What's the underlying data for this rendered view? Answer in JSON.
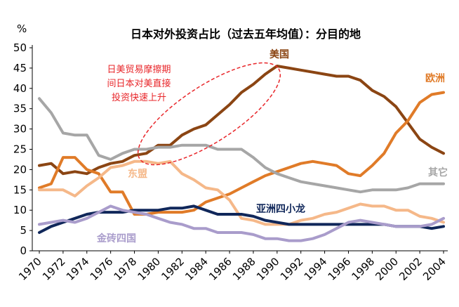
{
  "chart_data": {
    "type": "line",
    "title": "日本对外投资占比（过去五年均值）：分目的地",
    "ylabel": "%",
    "ylim": [
      0,
      50
    ],
    "yticks": [
      0,
      5,
      10,
      15,
      20,
      25,
      30,
      35,
      40,
      45,
      50
    ],
    "xlim": [
      1970,
      2004
    ],
    "xticks": [
      "1970",
      "1972",
      "1974",
      "1976",
      "1978",
      "1980",
      "1982",
      "1984",
      "1986",
      "1988",
      "1990",
      "1992",
      "1994",
      "1996",
      "1998",
      "2000",
      "2002",
      "2004"
    ],
    "grid": false,
    "x": [
      1970,
      1971,
      1972,
      1973,
      1974,
      1975,
      1976,
      1977,
      1978,
      1979,
      1980,
      1981,
      1982,
      1983,
      1984,
      1985,
      1986,
      1987,
      1988,
      1989,
      1990,
      1991,
      1992,
      1993,
      1994,
      1995,
      1996,
      1997,
      1998,
      1999,
      2000,
      2001,
      2002,
      2003,
      2004
    ],
    "series": [
      {
        "name": "美国",
        "color": "#8b4513",
        "values": [
          21,
          21.5,
          19,
          19.5,
          19,
          20.5,
          21.5,
          22,
          23.5,
          24,
          26,
          26,
          28.5,
          30,
          31,
          33.5,
          36,
          39,
          41,
          43.5,
          45.5,
          45,
          44.5,
          44,
          43.5,
          43,
          43,
          42,
          39.5,
          38,
          35.5,
          31.5,
          27.5,
          25.5,
          24
        ]
      },
      {
        "name": "欧洲",
        "color": "#e07b28",
        "values": [
          15.5,
          16.5,
          23,
          23,
          20,
          19,
          14.5,
          14.5,
          9,
          9,
          9.5,
          9.5,
          9.5,
          10,
          12,
          13,
          14,
          15.5,
          17,
          18.5,
          19.5,
          20.5,
          21.5,
          22,
          21.5,
          21,
          19,
          18.5,
          21,
          24,
          29,
          32,
          36.5,
          38.5,
          39
        ]
      },
      {
        "name": "东盟",
        "color": "#f5b889",
        "values": [
          15,
          15,
          15,
          13.5,
          16,
          18,
          20.5,
          21,
          22,
          22,
          21.5,
          22,
          19,
          17.5,
          15.5,
          15,
          12.5,
          8,
          7.5,
          6.5,
          6.5,
          6.5,
          7.5,
          8,
          9,
          9.5,
          10.5,
          11.5,
          11,
          11,
          10,
          10,
          8.5,
          8,
          7
        ]
      },
      {
        "name": "亚洲四小龙",
        "color": "#10275a",
        "values": [
          4.5,
          6,
          7,
          8,
          9,
          9.5,
          9.5,
          9.5,
          10,
          10,
          10,
          10.5,
          10.5,
          11,
          10,
          9,
          9,
          9,
          8.5,
          7.5,
          7,
          6.5,
          6.5,
          6.5,
          6.5,
          6.5,
          6.5,
          6.5,
          6.5,
          6.5,
          6,
          6,
          6,
          5.5,
          6
        ]
      },
      {
        "name": "金砖四国",
        "color": "#a99ccb",
        "values": [
          6.5,
          7,
          7.5,
          7,
          8,
          9.5,
          11,
          10,
          9.5,
          9,
          8,
          7,
          6.5,
          5.5,
          5.5,
          4.5,
          4.5,
          4.5,
          4,
          3,
          3,
          2.5,
          2.5,
          3,
          4,
          5.5,
          7,
          7.5,
          7,
          6.5,
          6,
          6,
          6,
          6.5,
          8
        ]
      },
      {
        "name": "其它",
        "color": "#a6a6a6",
        "values": [
          37.5,
          34,
          29,
          28.5,
          28.5,
          23.5,
          22.5,
          24,
          25,
          25,
          25.5,
          25.5,
          26,
          26,
          26,
          25,
          25,
          25,
          23,
          20.5,
          19,
          18,
          17,
          16.5,
          16,
          15.5,
          15,
          14.5,
          15,
          15,
          15,
          15.5,
          16.5,
          16.5,
          16.5
        ]
      }
    ],
    "annotation": {
      "lines": [
        "日美贸易摩擦期",
        "间日本对美直接",
        "投资快速上升"
      ],
      "color": "#e8262a"
    }
  }
}
